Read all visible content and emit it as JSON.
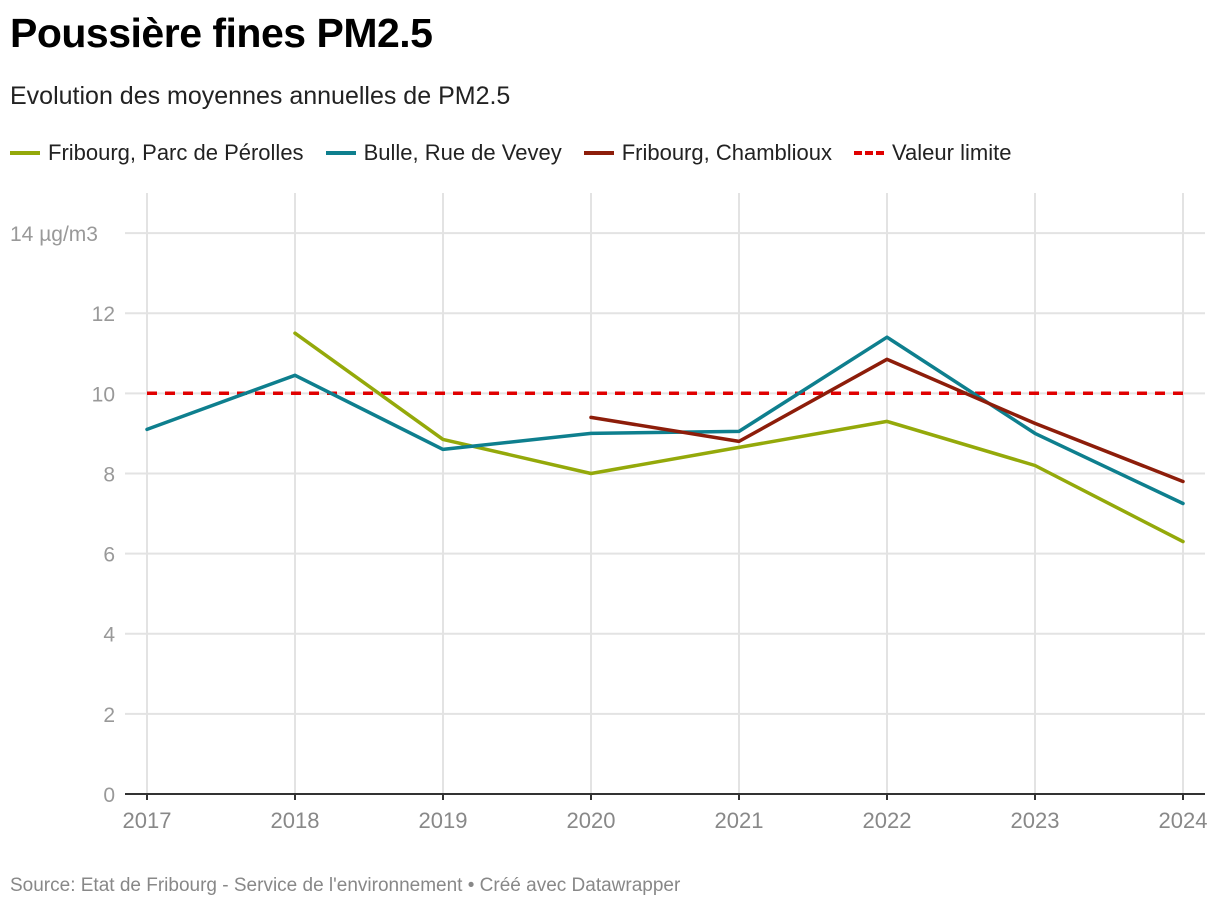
{
  "header": {
    "title": "Poussière fines PM2.5",
    "subtitle": "Evolution des moyennes annuelles de PM2.5"
  },
  "footer": {
    "source": "Source: Etat de Fribourg - Service de l'environnement • Créé avec Datawrapper"
  },
  "chart_data": {
    "type": "line",
    "title": "Poussière fines PM2.5",
    "subtitle": "Evolution des moyennes annuelles de PM2.5",
    "xlabel": "",
    "ylabel": "µg/m3",
    "ylim": [
      0,
      15
    ],
    "y_ticks": [
      0,
      2,
      4,
      6,
      8,
      10,
      12,
      14
    ],
    "y_top_tick_label": "14 µg/m3",
    "categories": [
      "2017",
      "2018",
      "2019",
      "2020",
      "2021",
      "2022",
      "2023",
      "2024"
    ],
    "series": [
      {
        "name": "Fribourg, Parc de Pérolles",
        "color": "#94a90a",
        "style": "solid",
        "values": [
          null,
          11.5,
          8.85,
          8.0,
          8.65,
          9.3,
          8.2,
          6.3
        ]
      },
      {
        "name": "Bulle, Rue de Vevey",
        "color": "#0e7f8e",
        "style": "solid",
        "values": [
          9.1,
          10.45,
          8.6,
          9.0,
          9.05,
          11.4,
          9.0,
          7.25
        ]
      },
      {
        "name": "Fribourg, Chamblioux",
        "color": "#8d1d0a",
        "style": "solid",
        "values": [
          null,
          null,
          null,
          9.4,
          8.8,
          10.85,
          9.25,
          7.8
        ]
      },
      {
        "name": "Valeur limite",
        "color": "#e00000",
        "style": "dashed",
        "values": [
          10,
          10,
          10,
          10,
          10,
          10,
          10,
          10
        ]
      }
    ],
    "legend_position": "top-left",
    "grid": true
  }
}
